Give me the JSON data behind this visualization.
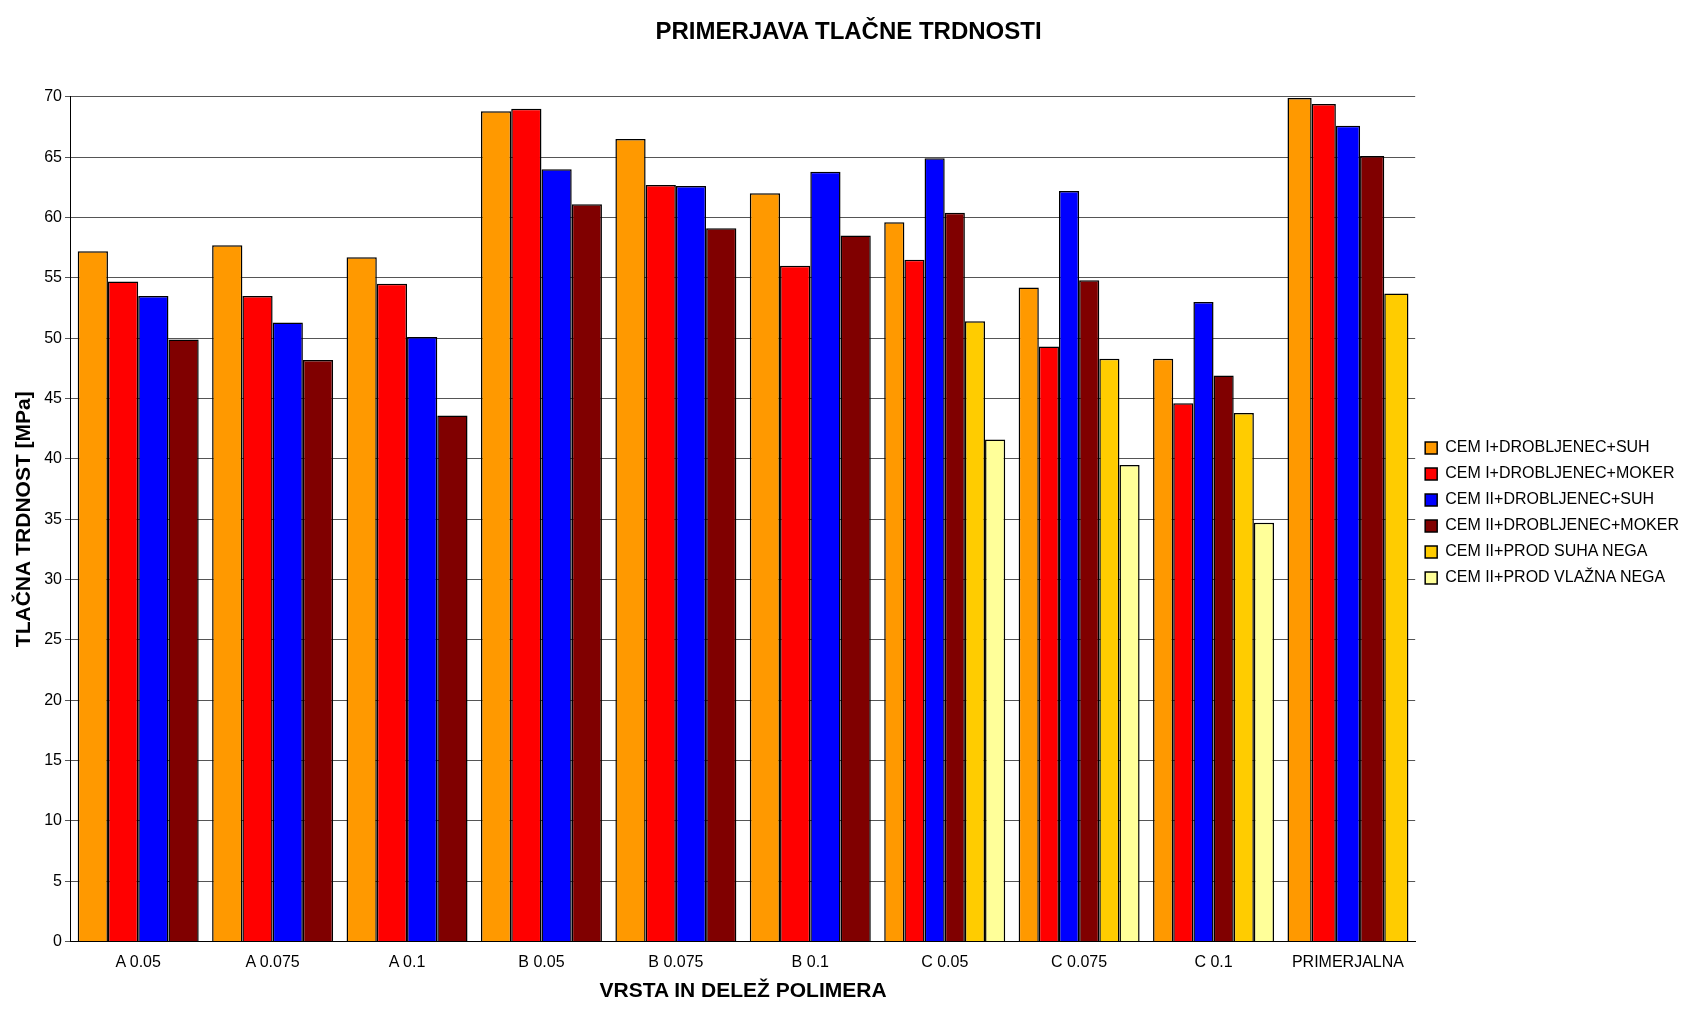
{
  "chart_data": {
    "type": "bar",
    "title": "PRIMERJAVA TLAČNE TRDNOSTI",
    "xlabel": "VRSTA IN DELEŽ POLIMERA",
    "ylabel": "TLAČNA TRDNOST [MPa]",
    "categories": [
      "A 0.05",
      "A 0.075",
      "A 0.1",
      "B 0.05",
      "B 0.075",
      "B 0.1",
      "C 0.05",
      "C 0.075",
      "C 0.1",
      "PRIMERJALNA"
    ],
    "series": [
      {
        "name": "CEM I+DROBLJENEC+SUH",
        "color": "#ff9900",
        "values": [
          57.2,
          57.7,
          56.7,
          68.8,
          66.5,
          62.0,
          59.6,
          54.2,
          48.3,
          69.9
        ]
      },
      {
        "name": "CEM I+DROBLJENEC+MOKER",
        "color": "#ff0000",
        "values": [
          54.7,
          53.5,
          54.5,
          69.0,
          62.7,
          56.0,
          56.5,
          49.3,
          44.6,
          69.4
        ]
      },
      {
        "name": "CEM II+DROBLJENEC+SUH",
        "color": "#0000ff",
        "values": [
          53.5,
          51.3,
          50.1,
          64.0,
          62.6,
          63.8,
          64.9,
          62.2,
          53.0,
          67.6
        ]
      },
      {
        "name": "CEM II+DROBLJENEC+MOKER",
        "color": "#800000",
        "values": [
          49.9,
          48.2,
          43.6,
          61.1,
          59.1,
          58.5,
          60.4,
          54.8,
          46.9,
          65.1
        ]
      },
      {
        "name": "CEM II+PROD SUHA NEGA",
        "color": "#ffcc00",
        "values": [
          null,
          null,
          null,
          null,
          null,
          null,
          51.4,
          48.3,
          43.8,
          53.7
        ]
      },
      {
        "name": "CEM II+PROD VLAŽNA NEGA",
        "color": "#ffff99",
        "values": [
          null,
          null,
          null,
          null,
          null,
          null,
          41.6,
          39.5,
          34.7,
          null
        ]
      }
    ],
    "ylim": [
      0,
      70
    ],
    "yticks": [
      0,
      5,
      10,
      15,
      20,
      25,
      30,
      35,
      40,
      45,
      50,
      55,
      60,
      65,
      70
    ],
    "grid": "y",
    "legend": "right"
  }
}
